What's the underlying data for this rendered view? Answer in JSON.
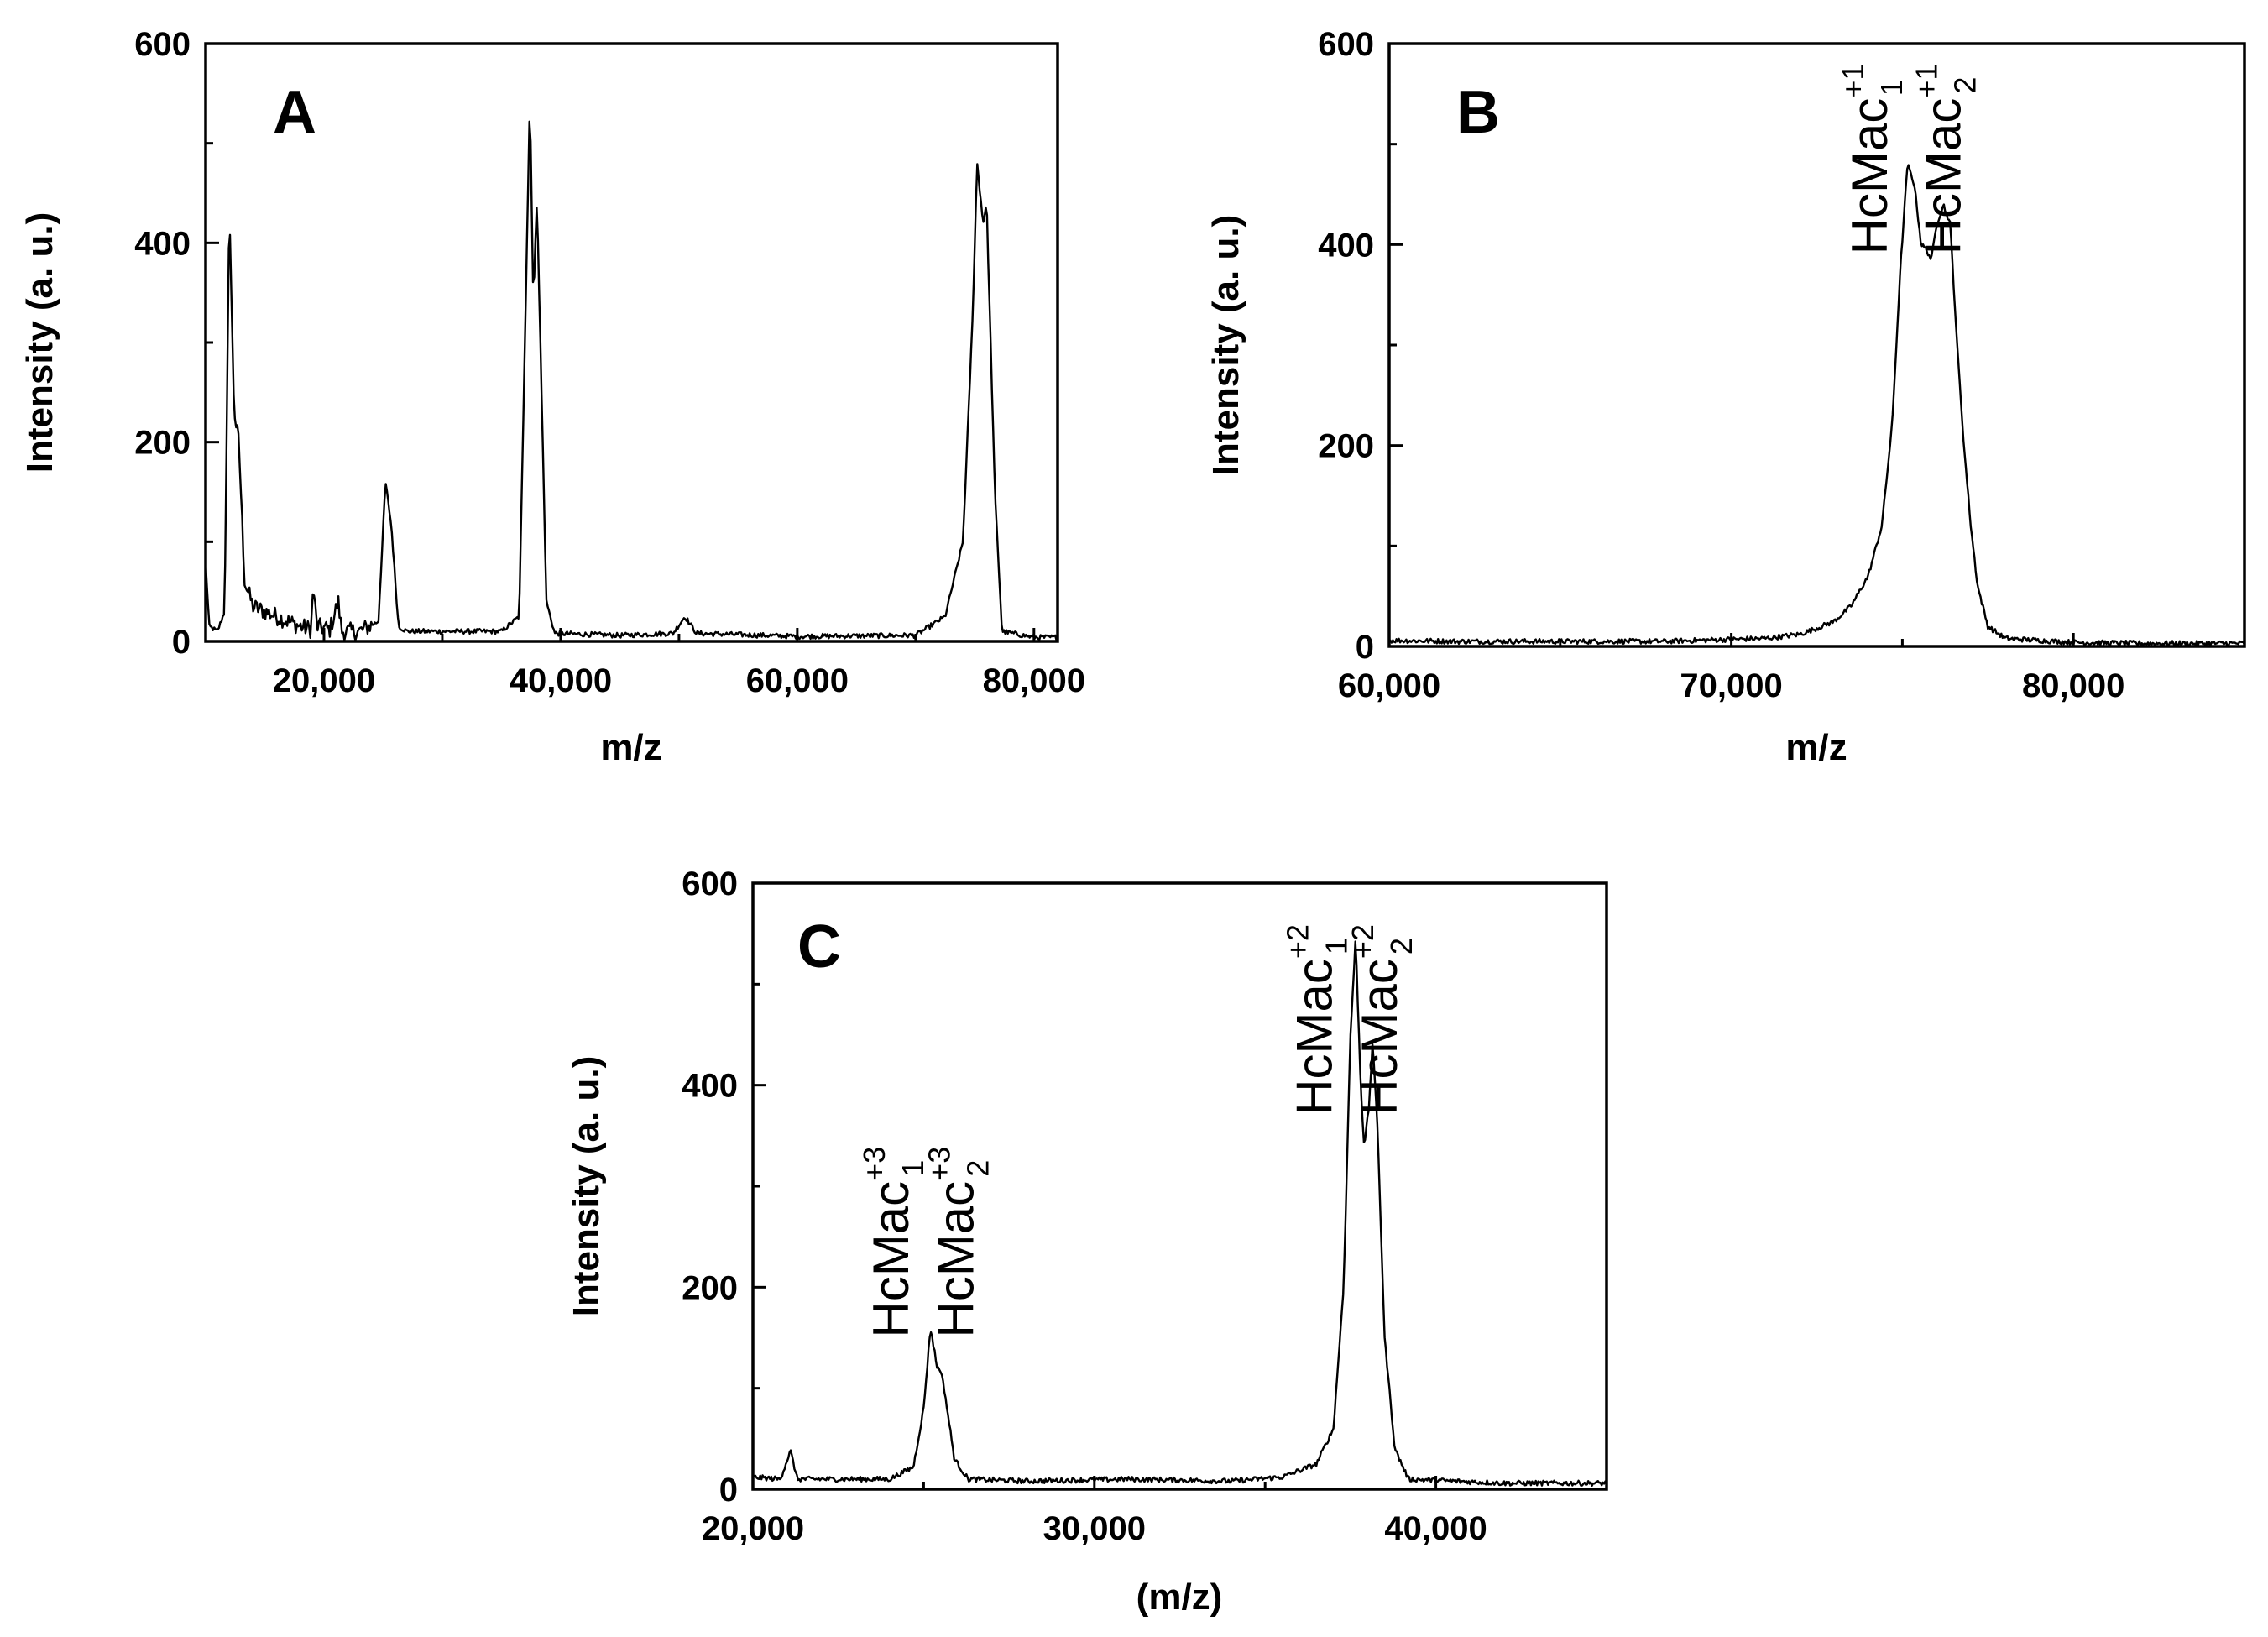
{
  "chart_data": [
    {
      "type": "line",
      "panel": "A",
      "title": "",
      "xlabel": "m/z",
      "ylabel": "Intensity (a. u.)",
      "xlim": [
        10000,
        82000
      ],
      "ylim": [
        0,
        600
      ],
      "xticks": [
        {
          "value": 20000,
          "label": "20,000"
        },
        {
          "value": 40000,
          "label": "40,000"
        },
        {
          "value": 60000,
          "label": "60,000"
        },
        {
          "value": 80000,
          "label": "80,000"
        }
      ],
      "yticks": [
        {
          "value": 0,
          "label": "0"
        },
        {
          "value": 200,
          "label": "200"
        },
        {
          "value": 400,
          "label": "400"
        },
        {
          "value": 600,
          "label": "600"
        }
      ],
      "baseline": [
        [
          10000,
          78
        ],
        [
          10300,
          15
        ],
        [
          11000,
          10
        ],
        [
          11600,
          30
        ],
        [
          12000,
          440
        ],
        [
          12400,
          230
        ],
        [
          12800,
          200
        ],
        [
          13300,
          60
        ],
        [
          14000,
          35
        ],
        [
          15000,
          30
        ],
        [
          16000,
          25
        ],
        [
          17000,
          20
        ],
        [
          18000,
          15
        ],
        [
          18900,
          12
        ],
        [
          19100,
          55
        ],
        [
          19400,
          15
        ],
        [
          20500,
          12
        ],
        [
          21200,
          40
        ],
        [
          21500,
          10
        ],
        [
          23000,
          10
        ],
        [
          24600,
          20
        ],
        [
          25200,
          160
        ],
        [
          25700,
          115
        ],
        [
          26300,
          15
        ],
        [
          27000,
          10
        ],
        [
          30000,
          10
        ],
        [
          35000,
          10
        ],
        [
          36500,
          25
        ],
        [
          37400,
          545
        ],
        [
          37700,
          340
        ],
        [
          38000,
          445
        ],
        [
          38800,
          40
        ],
        [
          39500,
          8
        ],
        [
          45000,
          6
        ],
        [
          49500,
          8
        ],
        [
          50500,
          25
        ],
        [
          51500,
          8
        ],
        [
          60000,
          5
        ],
        [
          70000,
          6
        ],
        [
          72500,
          25
        ],
        [
          74000,
          100
        ],
        [
          74800,
          320
        ],
        [
          75200,
          480
        ],
        [
          75700,
          420
        ],
        [
          76000,
          440
        ],
        [
          76700,
          150
        ],
        [
          77300,
          10
        ],
        [
          80000,
          4
        ],
        [
          82000,
          4
        ]
      ],
      "annotations": []
    },
    {
      "type": "line",
      "panel": "B",
      "title": "",
      "xlabel": "m/z",
      "ylabel": "Intensity (a. u.)",
      "xlim": [
        60000,
        85000
      ],
      "ylim": [
        0,
        600
      ],
      "xticks": [
        {
          "value": 60000,
          "label": "60,000"
        },
        {
          "value": 70000,
          "label": "70,000"
        },
        {
          "value": 80000,
          "label": "80,000"
        }
      ],
      "yticks": [
        {
          "value": 0,
          "label": "0"
        },
        {
          "value": 200,
          "label": "200"
        },
        {
          "value": 400,
          "label": "400"
        },
        {
          "value": 600,
          "label": "600"
        }
      ],
      "baseline": [
        [
          60000,
          6
        ],
        [
          62000,
          5
        ],
        [
          64000,
          5
        ],
        [
          66000,
          5
        ],
        [
          68000,
          5
        ],
        [
          70000,
          7
        ],
        [
          71000,
          8
        ],
        [
          72000,
          12
        ],
        [
          72500,
          18
        ],
        [
          73000,
          25
        ],
        [
          73500,
          40
        ],
        [
          74000,
          70
        ],
        [
          74400,
          120
        ],
        [
          74700,
          220
        ],
        [
          74950,
          380
        ],
        [
          75150,
          480
        ],
        [
          75350,
          460
        ],
        [
          75550,
          400
        ],
        [
          75700,
          395
        ],
        [
          75850,
          385
        ],
        [
          76000,
          420
        ],
        [
          76200,
          440
        ],
        [
          76400,
          420
        ],
        [
          76600,
          300
        ],
        [
          76800,
          200
        ],
        [
          77000,
          120
        ],
        [
          77200,
          60
        ],
        [
          77500,
          20
        ],
        [
          78000,
          8
        ],
        [
          80000,
          4
        ],
        [
          82000,
          3
        ],
        [
          85000,
          3
        ]
      ],
      "annotations": [
        {
          "base": "HcMac",
          "sup": "+1",
          "sub": "1",
          "x": 74550,
          "y": 390
        },
        {
          "base": "HcMac",
          "sup": "+1",
          "sub": "2",
          "x": 76700,
          "y": 390
        }
      ]
    },
    {
      "type": "line",
      "panel": "C",
      "title": "",
      "xlabel": "(m/z)",
      "ylabel": "Intensity (a. u.)",
      "xlim": [
        20000,
        45000
      ],
      "ylim": [
        0,
        600
      ],
      "xticks": [
        {
          "value": 20000,
          "label": "20,000"
        },
        {
          "value": 30000,
          "label": "30,000"
        },
        {
          "value": 40000,
          "label": "40,000"
        }
      ],
      "yticks": [
        {
          "value": 0,
          "label": "0"
        },
        {
          "value": 200,
          "label": "200"
        },
        {
          "value": 400,
          "label": "400"
        },
        {
          "value": 600,
          "label": "600"
        }
      ],
      "baseline": [
        [
          20000,
          12
        ],
        [
          20800,
          10
        ],
        [
          21100,
          38
        ],
        [
          21300,
          10
        ],
        [
          22500,
          10
        ],
        [
          24000,
          10
        ],
        [
          24700,
          22
        ],
        [
          25000,
          80
        ],
        [
          25200,
          160
        ],
        [
          25400,
          120
        ],
        [
          25500,
          118
        ],
        [
          25600,
          100
        ],
        [
          25900,
          30
        ],
        [
          26300,
          10
        ],
        [
          28000,
          8
        ],
        [
          31000,
          10
        ],
        [
          34000,
          8
        ],
        [
          35500,
          12
        ],
        [
          36500,
          25
        ],
        [
          37000,
          60
        ],
        [
          37300,
          200
        ],
        [
          37500,
          450
        ],
        [
          37650,
          545
        ],
        [
          37800,
          400
        ],
        [
          37900,
          340
        ],
        [
          38050,
          380
        ],
        [
          38150,
          445
        ],
        [
          38300,
          350
        ],
        [
          38500,
          150
        ],
        [
          38800,
          40
        ],
        [
          39200,
          10
        ],
        [
          42000,
          6
        ],
        [
          45000,
          6
        ]
      ],
      "annotations": [
        {
          "base": "HcMac",
          "sup": "+3",
          "sub": "1",
          "x": 24550,
          "y": 150
        },
        {
          "base": "HcMac",
          "sup": "+3",
          "sub": "2",
          "x": 26450,
          "y": 150
        },
        {
          "base": "HcMac",
          "sup": "+2",
          "sub": "1",
          "x": 36950,
          "y": 370
        },
        {
          "base": "HcMac",
          "sup": "+2",
          "sub": "2",
          "x": 38850,
          "y": 370
        }
      ]
    }
  ]
}
